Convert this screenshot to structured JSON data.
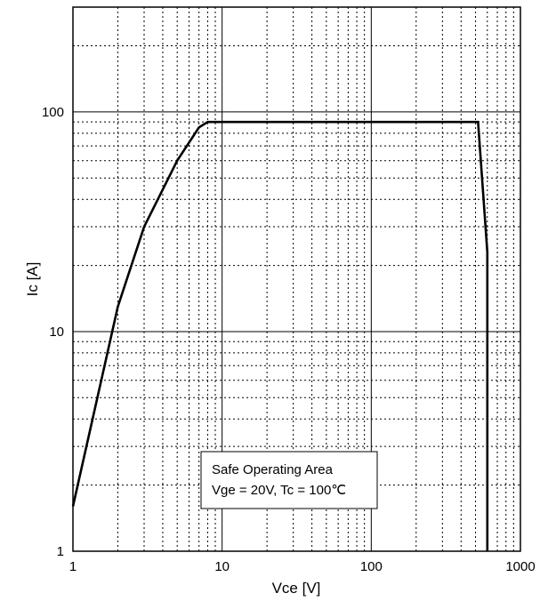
{
  "chart_data": {
    "type": "line",
    "xscale": "log",
    "yscale": "log",
    "xlabel": "Vce [V]",
    "ylabel": "Ic [A]",
    "xlim": [
      1,
      1000
    ],
    "ylim": [
      1,
      300
    ],
    "xticks": [
      1,
      10,
      100,
      1000
    ],
    "xtick_labels": [
      "1",
      "10",
      "100",
      "1000"
    ],
    "yticks": [
      1,
      10,
      100
    ],
    "ytick_labels": [
      "1",
      "10",
      "100"
    ],
    "grid": true,
    "series": [
      {
        "x": [
          1,
          2,
          3,
          5,
          7,
          8,
          520,
          600,
          600
        ],
        "y": [
          1.6,
          13,
          30,
          60,
          85,
          90,
          90,
          23,
          1
        ]
      }
    ],
    "annotation": {
      "lines": [
        "Safe Operating Area",
        "Vge = 20V, Tc = 100℃"
      ]
    },
    "colors": {
      "line": "#000000",
      "grid": "#000000",
      "background": "#ffffff"
    }
  }
}
